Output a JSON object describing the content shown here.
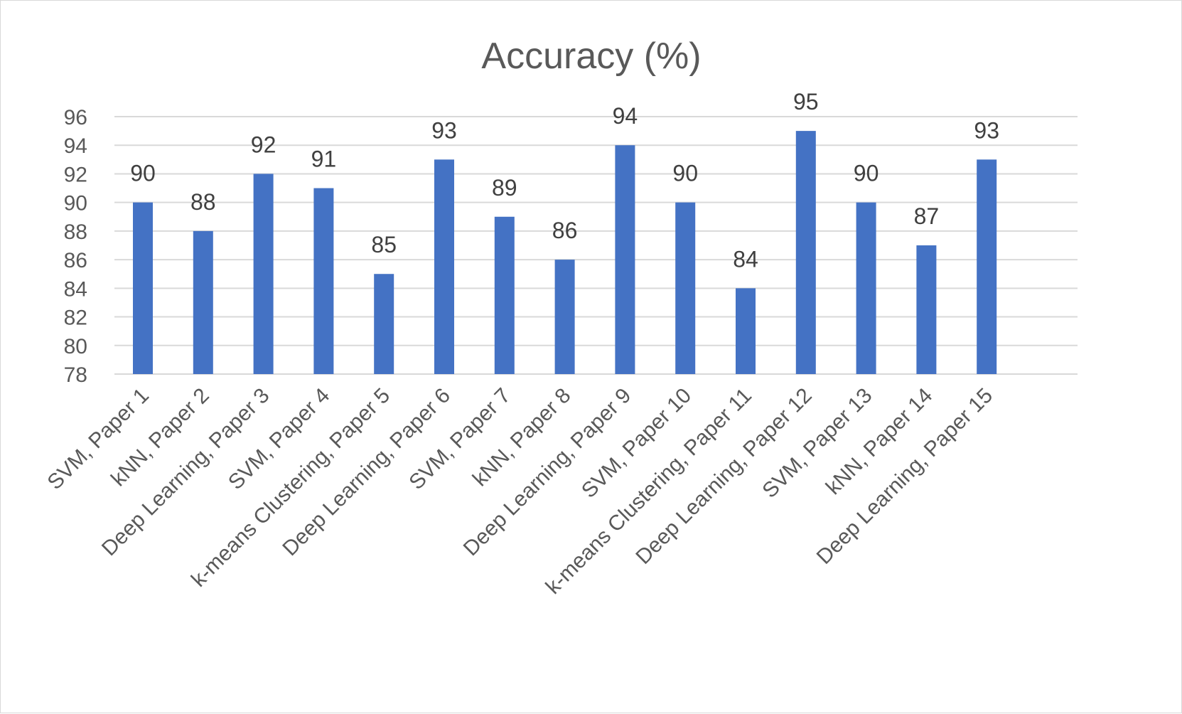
{
  "chart_data": {
    "type": "bar",
    "title": "Accuracy (%)",
    "categories": [
      "SVM, Paper 1",
      "kNN, Paper 2",
      "Deep Learning, Paper 3",
      "SVM, Paper 4",
      "k-means Clustering, Paper 5",
      "Deep Learning, Paper 6",
      "SVM, Paper 7",
      "kNN, Paper 8",
      "Deep Learning, Paper 9",
      "SVM, Paper 10",
      "k-means Clustering, Paper 11",
      "Deep Learning, Paper 12",
      "SVM, Paper 13",
      "kNN, Paper 14",
      "Deep Learning, Paper 15"
    ],
    "values": [
      90,
      88,
      92,
      91,
      85,
      93,
      89,
      86,
      94,
      90,
      84,
      95,
      90,
      87,
      93
    ],
    "ylim": [
      78,
      96
    ],
    "yticks": [
      78,
      80,
      82,
      84,
      86,
      88,
      90,
      92,
      94,
      96
    ],
    "grid": true,
    "data_labels": true,
    "colors": {
      "bar": "#4472C4",
      "grid": "#D9D9D9",
      "text": "#595959",
      "label": "#404040"
    }
  }
}
